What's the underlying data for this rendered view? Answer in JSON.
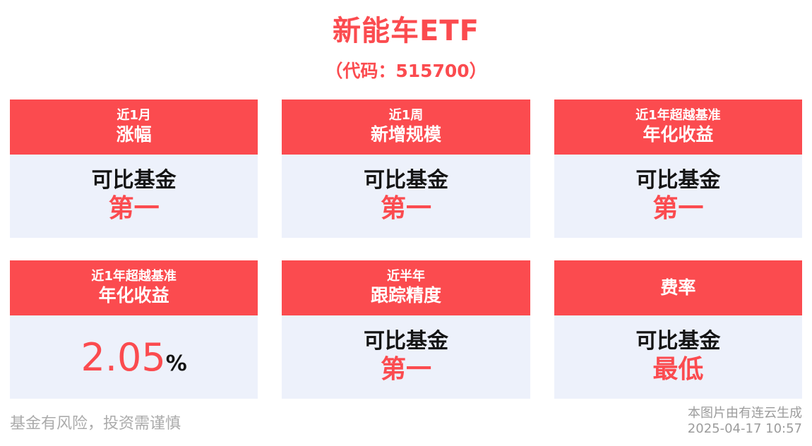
{
  "header": {
    "title": "新能车ETF",
    "subtitle": "（代码：515700）"
  },
  "cards": [
    {
      "period": "近1月",
      "metric": "涨幅",
      "body_label": "可比基金",
      "body_value": "第一"
    },
    {
      "period": "近1周",
      "metric": "新增规模",
      "body_label": "可比基金",
      "body_value": "第一"
    },
    {
      "period": "近1年超越基准",
      "metric": "年化收益",
      "body_label": "可比基金",
      "body_value": "第一"
    },
    {
      "period": "近1年超越基准",
      "metric": "年化收益",
      "value": "2.05",
      "unit": "%"
    },
    {
      "period": "近半年",
      "metric": "跟踪精度",
      "body_label": "可比基金",
      "body_value": "第一"
    },
    {
      "period": "",
      "metric": "费率",
      "body_label": "可比基金",
      "body_value": "最低"
    }
  ],
  "footer": {
    "disclaimer": "基金有风险，投资需谨慎",
    "credit": "本图片由有连云生成",
    "timestamp": "2025-04-17 10:57"
  },
  "colors": {
    "accent_red": "#fb4b4f",
    "card_body_bg": "#edf1fb",
    "body_text": "#141414",
    "disclaimer_gray": "#ababab",
    "credit_gray": "#9c9c9c",
    "header_text": "#ffffff",
    "page_bg": "#ffffff"
  }
}
